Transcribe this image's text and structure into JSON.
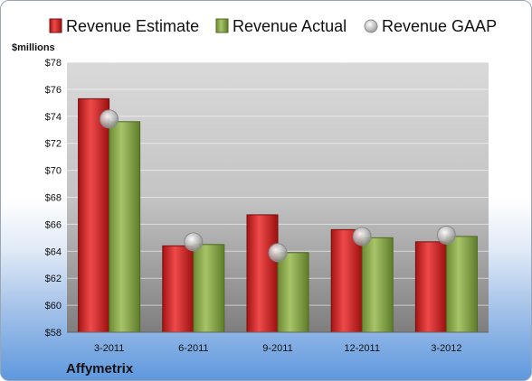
{
  "chart_data": {
    "type": "bar",
    "categories": [
      "3-2011",
      "6-2011",
      "9-2011",
      "12-2011",
      "3-2012"
    ],
    "series": [
      {
        "name": "Revenue Estimate",
        "values": [
          75.3,
          64.4,
          66.7,
          65.6,
          64.7
        ],
        "color": "#d42a2a"
      },
      {
        "name": "Revenue Actual",
        "values": [
          73.6,
          64.5,
          63.9,
          65.0,
          65.1
        ],
        "color": "#8caa4c"
      },
      {
        "name": "Revenue GAAP",
        "values": [
          73.8,
          64.7,
          63.9,
          65.1,
          65.2
        ],
        "color": "#b5b5b5",
        "style": "marker"
      }
    ],
    "ylabel": "$millions",
    "ylim": [
      58,
      78
    ],
    "yticks": [
      "$58",
      "$60",
      "$62",
      "$64",
      "$66",
      "$68",
      "$70",
      "$72",
      "$74",
      "$76",
      "$78"
    ],
    "grid": true,
    "legend_position": "top"
  },
  "company": "Affymetrix"
}
